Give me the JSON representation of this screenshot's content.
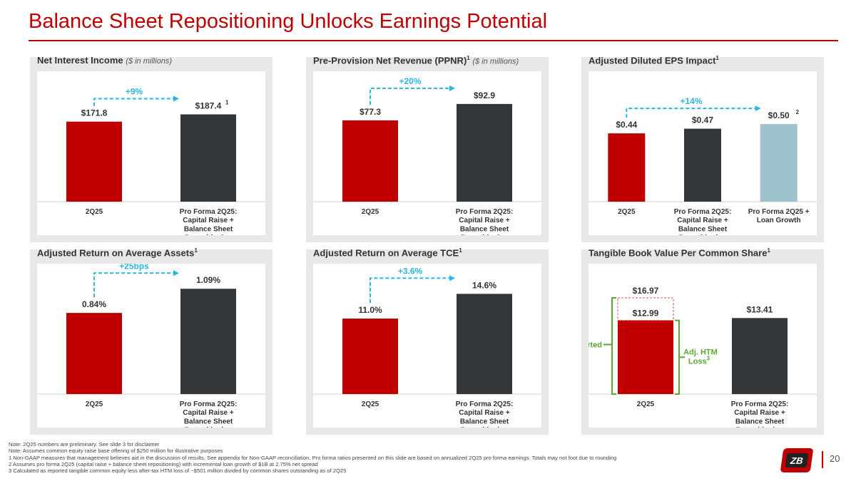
{
  "title": "Balance Sheet Repositioning Unlocks Earnings Potential",
  "colors": {
    "red": "#c00000",
    "dark": "#333638",
    "lightblue": "#9fc3cc",
    "cyan": "#29b6e3",
    "green": "#5aa832",
    "dashed_box": "#d9534f"
  },
  "panels": [
    {
      "title": "Net Interest Income",
      "subtitle": "($ in millions)",
      "sup": ""
    },
    {
      "title": "Pre-Provision Net Revenue (PPNR)",
      "sup": "1",
      "subtitle": "($ in millions)"
    },
    {
      "title": "Adjusted Diluted EPS Impact",
      "sup": "1",
      "subtitle": ""
    },
    {
      "title": "Adjusted Return on Average Assets",
      "sup": "1",
      "subtitle": ""
    },
    {
      "title": "Adjusted Return on Average TCE",
      "sup": "1",
      "subtitle": ""
    },
    {
      "title": "Tangible Book Value Per Common Share",
      "sup": "1",
      "subtitle": ""
    }
  ],
  "chart_data": [
    {
      "type": "bar",
      "title": "Net Interest Income ($ in millions)",
      "categories": [
        [
          "2Q25"
        ],
        [
          "Pro Forma 2Q25:",
          "Capital Raise +",
          "Balance Sheet",
          "Repositioning"
        ]
      ],
      "values": [
        171.8,
        187.4
      ],
      "labels": [
        "$171.8",
        "$187.4"
      ],
      "label_sups": [
        "",
        "1"
      ],
      "colors": [
        "red",
        "dark"
      ],
      "ylim": [
        0,
        280
      ],
      "growth": {
        "label": "+9%",
        "from": 0,
        "to": 1
      }
    },
    {
      "type": "bar",
      "title": "Pre-Provision Net Revenue (PPNR) ($ in millions)",
      "categories": [
        [
          "2Q25"
        ],
        [
          "Pro Forma 2Q25:",
          "Capital Raise +",
          "Balance Sheet",
          "Repositioning"
        ]
      ],
      "values": [
        77.3,
        92.9
      ],
      "labels": [
        "$77.3",
        "$92.9"
      ],
      "label_sups": [
        "",
        ""
      ],
      "colors": [
        "red",
        "dark"
      ],
      "ylim": [
        0,
        124
      ],
      "growth": {
        "label": "+20%",
        "from": 0,
        "to": 1
      }
    },
    {
      "type": "bar",
      "title": "Adjusted Diluted EPS Impact",
      "categories": [
        [
          "2Q25"
        ],
        [
          "Pro Forma 2Q25:",
          "Capital Raise +",
          "Balance Sheet",
          "Repositioning"
        ],
        [
          "Pro Forma 2Q25 +",
          "Loan Growth"
        ]
      ],
      "values": [
        0.44,
        0.47,
        0.5
      ],
      "labels": [
        "$0.44",
        "$0.47",
        "$0.50"
      ],
      "label_sups": [
        "",
        "",
        "2"
      ],
      "colors": [
        "red",
        "dark",
        "lightblue"
      ],
      "ylim": [
        0,
        0.84
      ],
      "growth": {
        "label": "+14%",
        "from": 0,
        "to": 2
      }
    },
    {
      "type": "bar",
      "title": "Adjusted Return on Average Assets",
      "categories": [
        [
          "2Q25"
        ],
        [
          "Pro Forma 2Q25:",
          "Capital Raise +",
          "Balance Sheet",
          "Repositioning"
        ]
      ],
      "values": [
        0.84,
        1.09
      ],
      "labels": [
        "0.84%",
        "1.09%"
      ],
      "label_sups": [
        "",
        ""
      ],
      "colors": [
        "red",
        "dark"
      ],
      "ylim": [
        0,
        1.35
      ],
      "growth": {
        "label": "+25bps",
        "from": 0,
        "to": 1
      }
    },
    {
      "type": "bar",
      "title": "Adjusted Return on Average TCE",
      "categories": [
        [
          "2Q25"
        ],
        [
          "Pro Forma 2Q25:",
          "Capital Raise +",
          "Balance Sheet",
          "Repositioning"
        ]
      ],
      "values": [
        11.0,
        14.6
      ],
      "labels": [
        "11.0%",
        "14.6%"
      ],
      "label_sups": [
        "",
        ""
      ],
      "colors": [
        "red",
        "dark"
      ],
      "ylim": [
        0,
        19
      ],
      "growth": {
        "label": "+3.6%",
        "from": 0,
        "to": 1
      }
    },
    {
      "type": "bar",
      "title": "Tangible Book Value Per Common Share",
      "categories": [
        [
          "2Q25"
        ],
        [
          "Pro Forma 2Q25:",
          "Capital Raise +",
          "Balance Sheet",
          "Repositioning"
        ]
      ],
      "values": [
        12.99,
        13.41
      ],
      "labels": [
        "$12.99",
        "$13.41"
      ],
      "label_sups": [
        "",
        ""
      ],
      "colors": [
        "red",
        "dark"
      ],
      "ylim": [
        0,
        23
      ],
      "adjusted": {
        "value": 16.97,
        "label": "$16.97"
      },
      "annotations": {
        "reported": "Reported",
        "adj_htm": [
          "Adj. HTM",
          "Loss"
        ],
        "adj_htm_sup": "3"
      }
    }
  ],
  "footnotes": [
    "Note:  2Q25 numbers are preliminary. See slide 3 for disclaimer",
    "Note: Assumes common equity raise base offering of $250 million for illustrative purposes",
    "1  Non-GAAP measures that management believes aid in the discussion of results. See appendix for Non-GAAP reconciliation. Pro forma ratios presented on this slide are based on annualized 2Q25 pro forma earnings. Totals may not foot due to rounding",
    "2  Assumes pro forma 2Q25 (capital raise + balance sheet repositioning) with incremental loan growth of $1B at 2.75% net spread",
    "3  Calculated as reported tangible common equity less after-tax HTM loss of ~$501 million divided by common shares outstanding as of 2Q25"
  ],
  "logo_text": "ZB",
  "page_number": "20"
}
